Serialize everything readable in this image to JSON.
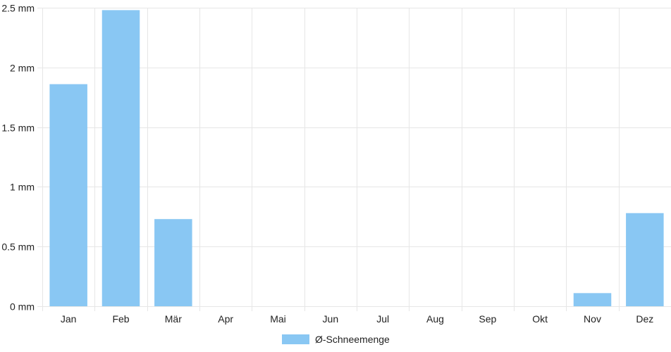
{
  "chart_data": {
    "type": "bar",
    "categories": [
      "Jan",
      "Feb",
      "Mär",
      "Apr",
      "Mai",
      "Jun",
      "Jul",
      "Aug",
      "Sep",
      "Okt",
      "Nov",
      "Dez"
    ],
    "series": [
      {
        "name": "Ø-Schneemenge",
        "values": [
          1.86,
          2.48,
          0.73,
          0,
          0,
          0,
          0,
          0,
          0,
          0,
          0.11,
          0.78
        ],
        "color": "#89c7f3"
      }
    ],
    "ylim": [
      0,
      2.5
    ],
    "yticks": [
      0,
      0.5,
      1,
      1.5,
      2,
      2.5
    ],
    "ytick_labels": [
      "0 mm",
      "0.5 mm",
      "1 mm",
      "1.5 mm",
      "2 mm",
      "2.5 mm"
    ],
    "grid": true,
    "grid_color": "#e6e6e6",
    "legend_position": "bottom"
  }
}
